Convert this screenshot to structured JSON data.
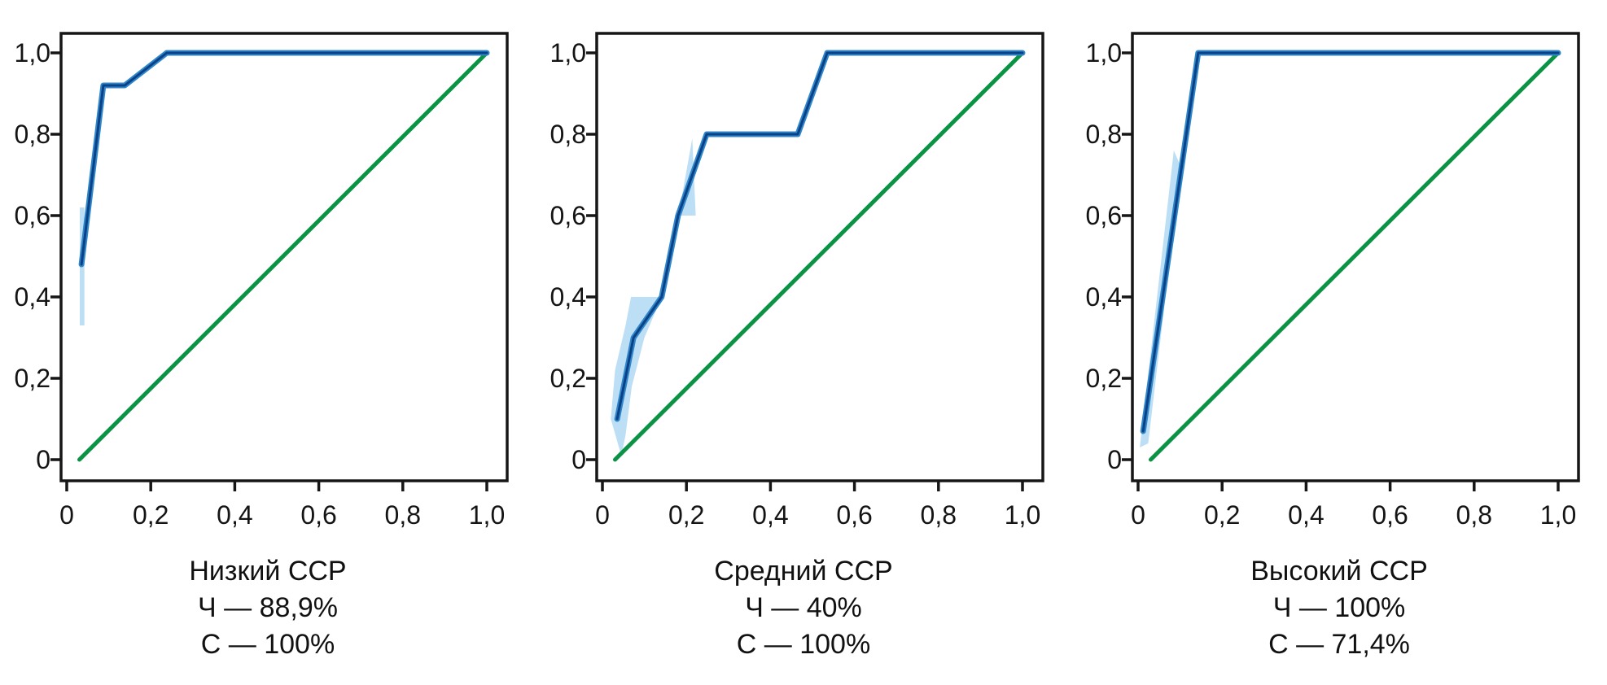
{
  "figure": {
    "background": "#ffffff",
    "grid": false,
    "legend": "none"
  },
  "colors": {
    "roc_outer": "#2f86c9",
    "roc_core": "#0b4186",
    "reference_line": "#0a9345",
    "confidence_band": "#abd7f3",
    "axis": "#161616",
    "text": "#111111"
  },
  "chart_data": [
    {
      "type": "line",
      "title": "Низкий ССР",
      "sensitivity": "Ч — 88,9%",
      "specificity": "С — 100%",
      "xlabel": "",
      "ylabel": "",
      "xlim": [
        0,
        1
      ],
      "ylim": [
        0,
        1
      ],
      "x_ticks": [
        "0",
        "0,2",
        "0,4",
        "0,6",
        "0,8",
        "1,0"
      ],
      "y_ticks": [
        "0",
        "0,2",
        "0,4",
        "0,6",
        "0,8",
        "1,0"
      ],
      "series": [
        {
          "name": "roc-curve",
          "points": [
            [
              0.035,
              0.48
            ],
            [
              0.087,
              0.92
            ],
            [
              0.138,
              0.92
            ],
            [
              0.238,
              1.0
            ],
            [
              1.0,
              1.0
            ]
          ]
        },
        {
          "name": "reference-diagonal",
          "points": [
            [
              0.03,
              0.0
            ],
            [
              1.0,
              1.0
            ]
          ]
        }
      ],
      "bands": [
        {
          "name": "confidence-band",
          "points": [
            [
              0.031,
              0.33
            ],
            [
              0.031,
              0.62
            ],
            [
              0.042,
              0.62
            ],
            [
              0.042,
              0.33
            ]
          ]
        }
      ]
    },
    {
      "type": "line",
      "title": "Средний ССР",
      "sensitivity": "Ч — 40%",
      "specificity": "С — 100%",
      "xlabel": "",
      "ylabel": "",
      "xlim": [
        0,
        1
      ],
      "ylim": [
        0,
        1
      ],
      "x_ticks": [
        "0",
        "0,2",
        "0,4",
        "0,6",
        "0,8",
        "1,0"
      ],
      "y_ticks": [
        "0",
        "0,2",
        "0,4",
        "0,6",
        "0,8",
        "1,0"
      ],
      "series": [
        {
          "name": "roc-curve",
          "points": [
            [
              0.035,
              0.1
            ],
            [
              0.074,
              0.3
            ],
            [
              0.141,
              0.4
            ],
            [
              0.18,
              0.6
            ],
            [
              0.248,
              0.8
            ],
            [
              0.465,
              0.8
            ],
            [
              0.535,
              1.0
            ],
            [
              1.0,
              1.0
            ]
          ]
        },
        {
          "name": "reference-diagonal",
          "points": [
            [
              0.03,
              0.0
            ],
            [
              1.0,
              1.0
            ]
          ]
        }
      ],
      "bands": [
        {
          "name": "confidence-band-lower",
          "points": [
            [
              0.045,
              0.01
            ],
            [
              0.02,
              0.1
            ],
            [
              0.03,
              0.22
            ],
            [
              0.055,
              0.33
            ],
            [
              0.068,
              0.4
            ],
            [
              0.141,
              0.4
            ],
            [
              0.1,
              0.3
            ],
            [
              0.07,
              0.18
            ],
            [
              0.055,
              0.06
            ]
          ]
        },
        {
          "name": "confidence-band-upper",
          "points": [
            [
              0.181,
              0.6
            ],
            [
              0.222,
              0.6
            ],
            [
              0.214,
              0.79
            ]
          ]
        }
      ]
    },
    {
      "type": "line",
      "title": "Высокий ССР",
      "sensitivity": "Ч — 100%",
      "specificity": "С — 71,4%",
      "xlabel": "",
      "ylabel": "",
      "xlim": [
        0,
        1
      ],
      "ylim": [
        0,
        1
      ],
      "x_ticks": [
        "0",
        "0,2",
        "0,4",
        "0,6",
        "0,8",
        "1,0"
      ],
      "y_ticks": [
        "0",
        "0,2",
        "0,4",
        "0,6",
        "0,8",
        "1,0"
      ],
      "series": [
        {
          "name": "roc-curve",
          "points": [
            [
              0.012,
              0.07
            ],
            [
              0.143,
              1.0
            ],
            [
              1.0,
              1.0
            ]
          ]
        },
        {
          "name": "reference-diagonal",
          "points": [
            [
              0.03,
              0.0
            ],
            [
              1.0,
              1.0
            ]
          ]
        }
      ],
      "bands": [
        {
          "name": "confidence-band",
          "points": [
            [
              0.004,
              0.03
            ],
            [
              0.085,
              0.76
            ],
            [
              0.102,
              0.72
            ],
            [
              0.024,
              0.04
            ]
          ]
        }
      ]
    }
  ]
}
